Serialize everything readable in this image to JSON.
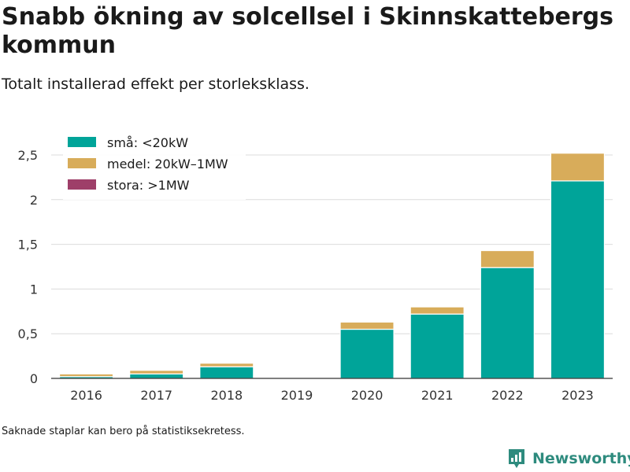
{
  "header": {
    "title": "Snabb ökning av solcellsel i Skinnskattebergs kommun",
    "subtitle": "Totalt installerad effekt per storleksklass."
  },
  "footer": {
    "note": "Saknade staplar kan bero på statistiksekretess.",
    "brand": "Newsworthy",
    "brand_color": "#2e8b7e"
  },
  "chart_data": {
    "type": "bar",
    "stacked": true,
    "categories": [
      "2016",
      "2017",
      "2018",
      "2019",
      "2020",
      "2021",
      "2022",
      "2023"
    ],
    "series": [
      {
        "name": "små: <20kW",
        "color": "#00a499",
        "values": [
          0.02,
          0.05,
          0.13,
          null,
          0.55,
          0.72,
          1.24,
          2.21
        ]
      },
      {
        "name": "medel: 20kW–1MW",
        "color": "#d8ac5a",
        "values": [
          0.03,
          0.04,
          0.04,
          null,
          0.08,
          0.08,
          0.19,
          0.31
        ]
      },
      {
        "name": "stora: >1MW",
        "color": "#9e3f69",
        "values": [
          0,
          0,
          0,
          null,
          0,
          0,
          0,
          0
        ]
      }
    ],
    "ylim": [
      0,
      2.5
    ],
    "yticks": [
      0,
      0.5,
      1,
      1.5,
      2,
      2.5
    ],
    "ytick_labels": [
      "0",
      "0,5",
      "1",
      "1,5",
      "2",
      "2,5"
    ],
    "xlabel": "",
    "ylabel": "",
    "grid": true,
    "legend_position": "top-left"
  }
}
